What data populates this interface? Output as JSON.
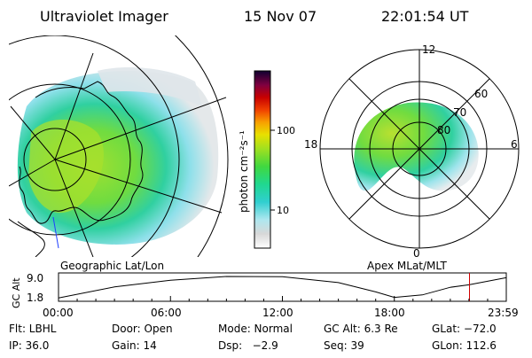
{
  "header": {
    "instrument": "Ultraviolet Imager",
    "date": "15 Nov 07",
    "time": "22:01:54 UT"
  },
  "left_panel": {
    "caption": "Geographic Lat/Lon"
  },
  "right_panel": {
    "caption": "Apex MLat/MLT",
    "mlt_labels": [
      "12",
      "18",
      "6",
      "0"
    ],
    "lat_labels": [
      "60",
      "70",
      "80"
    ]
  },
  "colorbar": {
    "unit_label": "photon cm⁻²s⁻¹",
    "ticks": [
      "100",
      "10"
    ]
  },
  "altitude_plot": {
    "ylabel": "GC Alt",
    "yticks": [
      "9.0",
      "1.8"
    ],
    "xticks": [
      "00:00",
      "06:00",
      "12:00",
      "18:00",
      "23:59"
    ],
    "marker_color": "#d00000"
  },
  "info": {
    "filter": "Flt: LBHL",
    "door": "Door: Open",
    "mode": "Mode: Normal",
    "gc_alt": "GC Alt: 6.3 Re",
    "glat": "GLat: −72.0",
    "ip": "IP: 36.0",
    "gain": "Gain: 14",
    "dsp": "Dsp:   −2.9",
    "seq": "Seq: 39",
    "glon": "GLon: 112.6"
  },
  "chart_data": [
    {
      "type": "heatmap",
      "title": "Ultraviolet Imager",
      "subtitle": "Geographic Lat/Lon",
      "colorbar": {
        "scale": "log",
        "ticks": [
          10,
          100
        ],
        "label": "photon cm⁻²s⁻¹"
      }
    },
    {
      "type": "heatmap",
      "subtitle": "Apex MLat/MLT",
      "mlt_ticks": [
        0,
        6,
        12,
        18
      ],
      "mlat_rings": [
        60,
        70,
        80
      ]
    },
    {
      "type": "line",
      "ylabel": "GC Alt",
      "yticks": [
        1.8,
        9.0
      ],
      "ylim": [
        1.8,
        9.0
      ],
      "x_hours": [
        0,
        3,
        6,
        9,
        12,
        15,
        17,
        18,
        19.5,
        21,
        22,
        23.99
      ],
      "alt_re": [
        2.0,
        5.6,
        7.8,
        9.0,
        8.9,
        7.0,
        4.0,
        2.2,
        3.0,
        5.5,
        6.3,
        8.6
      ],
      "current_time_hours": 22.03
    }
  ]
}
